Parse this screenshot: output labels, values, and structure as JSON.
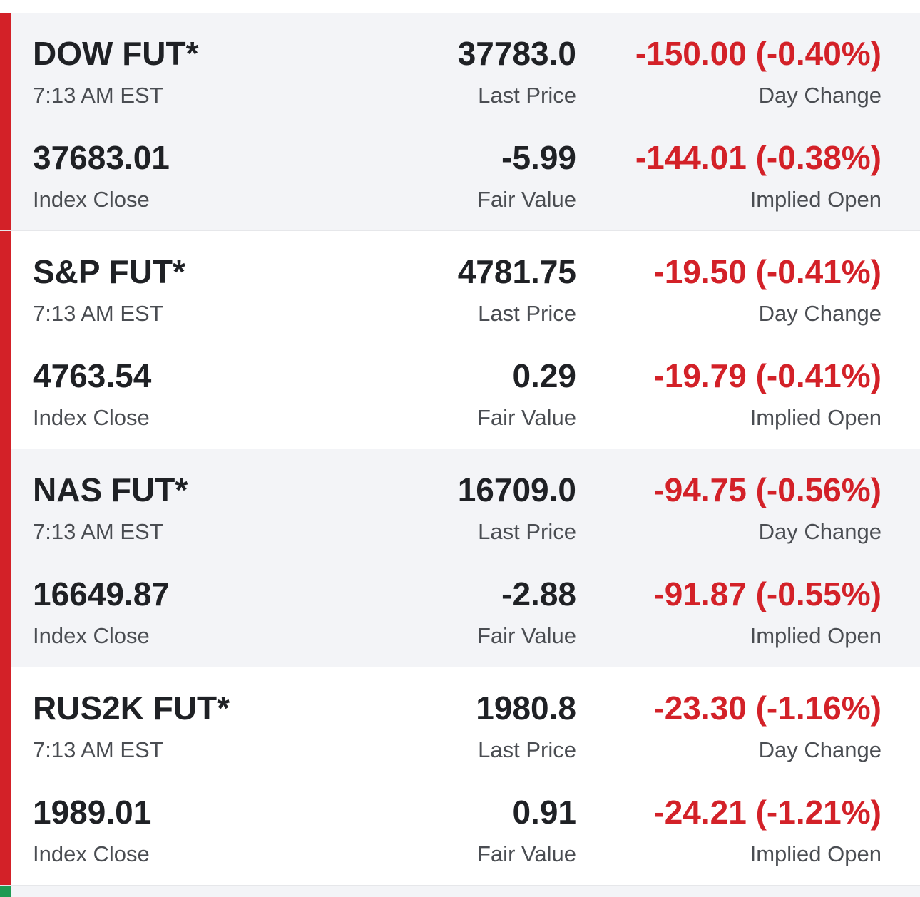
{
  "colors": {
    "negative": "#d32128",
    "positive": "#1f9a52",
    "text_primary": "#1f2125",
    "text_secondary": "#4a4d52",
    "row_shaded": "#f3f4f7"
  },
  "futures": [
    {
      "name": "DOW FUT*",
      "time": "7:13 AM EST",
      "last_price": "37783.0",
      "last_price_label": "Last Price",
      "day_change": "-150.00 (-0.40%)",
      "day_change_label": "Day Change",
      "index_close": "37683.01",
      "index_close_label": "Index Close",
      "fair_value": "-5.99",
      "fair_value_label": "Fair Value",
      "implied_open": "-144.01 (-0.38%)",
      "implied_open_label": "Implied Open",
      "trend": "down"
    },
    {
      "name": "S&P FUT*",
      "time": "7:13 AM EST",
      "last_price": "4781.75",
      "last_price_label": "Last Price",
      "day_change": "-19.50 (-0.41%)",
      "day_change_label": "Day Change",
      "index_close": "4763.54",
      "index_close_label": "Index Close",
      "fair_value": "0.29",
      "fair_value_label": "Fair Value",
      "implied_open": "-19.79 (-0.41%)",
      "implied_open_label": "Implied Open",
      "trend": "down"
    },
    {
      "name": "NAS FUT*",
      "time": "7:13 AM EST",
      "last_price": "16709.0",
      "last_price_label": "Last Price",
      "day_change": "-94.75 (-0.56%)",
      "day_change_label": "Day Change",
      "index_close": "16649.87",
      "index_close_label": "Index Close",
      "fair_value": "-2.88",
      "fair_value_label": "Fair Value",
      "implied_open": "-91.87 (-0.55%)",
      "implied_open_label": "Implied Open",
      "trend": "down"
    },
    {
      "name": "RUS2K FUT*",
      "time": "7:13 AM EST",
      "last_price": "1980.8",
      "last_price_label": "Last Price",
      "day_change": "-23.30 (-1.16%)",
      "day_change_label": "Day Change",
      "index_close": "1989.01",
      "index_close_label": "Index Close",
      "fair_value": "0.91",
      "fair_value_label": "Fair Value",
      "implied_open": "-24.21 (-1.21%)",
      "implied_open_label": "Implied Open",
      "trend": "down"
    }
  ]
}
